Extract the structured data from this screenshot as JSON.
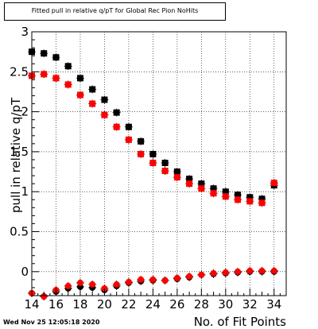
{
  "window": {
    "timestamp": "Wed Nov 25 12:05:18 2020"
  },
  "chart_data": {
    "type": "scatter",
    "title": "Fitted pull in relative q/pT for Global Rec Pion NoHits",
    "xlabel": "No. of Fit Points",
    "ylabel": "pull in relative q/pT",
    "xlim": [
      14,
      35
    ],
    "ylim": [
      -0.3,
      3.0
    ],
    "xticks": [
      "14",
      "16",
      "18",
      "20",
      "22",
      "24",
      "26",
      "28",
      "30",
      "32",
      "34"
    ],
    "yticks": [
      "0",
      "0.5",
      "1",
      "1.5",
      "2",
      "2.5",
      "3"
    ],
    "grid": true,
    "x": [
      14,
      15,
      16,
      17,
      18,
      19,
      20,
      21,
      22,
      23,
      24,
      25,
      26,
      27,
      28,
      29,
      30,
      31,
      32,
      33,
      34
    ],
    "series": [
      {
        "color": "#000000",
        "marker": "square",
        "values": [
          2.75,
          2.73,
          2.68,
          2.57,
          2.42,
          2.28,
          2.15,
          1.99,
          1.81,
          1.63,
          1.47,
          1.36,
          1.25,
          1.16,
          1.1,
          1.04,
          1.0,
          0.96,
          0.93,
          0.91,
          1.08
        ]
      },
      {
        "color": "#ff0000",
        "marker": "square",
        "values": [
          2.45,
          2.47,
          2.42,
          2.34,
          2.21,
          2.1,
          1.96,
          1.81,
          1.65,
          1.47,
          1.36,
          1.26,
          1.18,
          1.1,
          1.04,
          0.98,
          0.94,
          0.9,
          0.88,
          0.86,
          1.11
        ]
      },
      {
        "color": "#000000",
        "marker": "circle",
        "values": [
          -0.27,
          -0.31,
          -0.25,
          -0.21,
          -0.19,
          -0.2,
          -0.23,
          -0.18,
          -0.14,
          -0.12,
          -0.11,
          -0.11,
          -0.09,
          -0.07,
          -0.04,
          -0.03,
          -0.02,
          -0.01,
          0.0,
          0.0,
          0.0
        ]
      },
      {
        "color": "#ff0000",
        "marker": "circle",
        "values": [
          -0.27,
          -0.31,
          -0.23,
          -0.18,
          -0.14,
          -0.16,
          -0.21,
          -0.16,
          -0.13,
          -0.1,
          -0.1,
          -0.11,
          -0.08,
          -0.06,
          -0.04,
          -0.02,
          -0.01,
          0.0,
          0.01,
          0.01,
          0.01
        ]
      }
    ]
  }
}
